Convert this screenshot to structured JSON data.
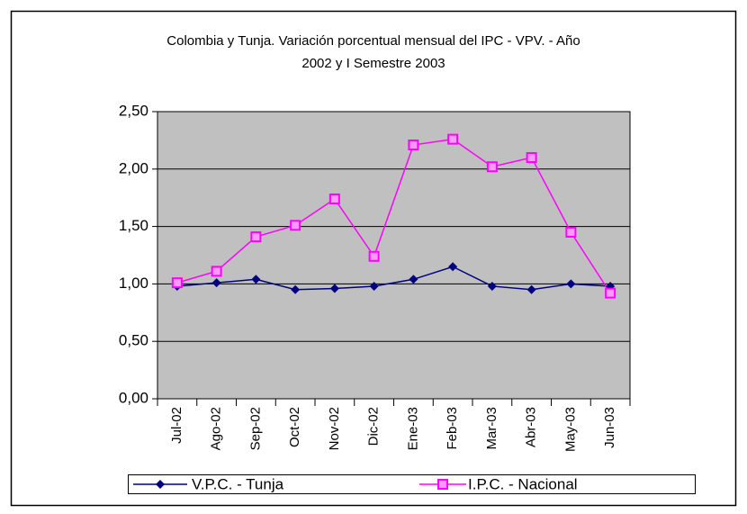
{
  "chart_data": {
    "type": "line",
    "title": [
      "Colombia y Tunja. Variación porcentual mensual del IPC - VPV. - Año",
      "2002 y I Semestre 2003"
    ],
    "categories": [
      "Jul-02",
      "Ago-02",
      "Sep-02",
      "Oct-02",
      "Nov-02",
      "Dic-02",
      "Ene-03",
      "Feb-03",
      "Mar-03",
      "Abr-03",
      "May-03",
      "Jun-03"
    ],
    "series": [
      {
        "name": "V.P.C. - Tunja",
        "color": "#000080",
        "marker": "diamond",
        "values": [
          0.98,
          1.01,
          1.04,
          0.95,
          0.96,
          0.98,
          1.04,
          1.15,
          0.98,
          0.95,
          1.0,
          0.98
        ]
      },
      {
        "name": "I.P.C. - Nacional",
        "color": "#ff00ff",
        "marker": "square",
        "values": [
          1.01,
          1.11,
          1.41,
          1.51,
          1.74,
          1.24,
          2.21,
          2.26,
          2.02,
          2.1,
          1.45,
          0.92
        ]
      }
    ],
    "ylim": [
      0,
      2.5
    ],
    "yticks": [
      {
        "value": 0,
        "label": "0,00"
      },
      {
        "value": 0.5,
        "label": "0,50"
      },
      {
        "value": 1,
        "label": "1,00"
      },
      {
        "value": 1.5,
        "label": "1,50"
      },
      {
        "value": 2,
        "label": "2,00"
      },
      {
        "value": 2.5,
        "label": "2,50"
      }
    ],
    "grid": true,
    "legend": "bottom"
  }
}
